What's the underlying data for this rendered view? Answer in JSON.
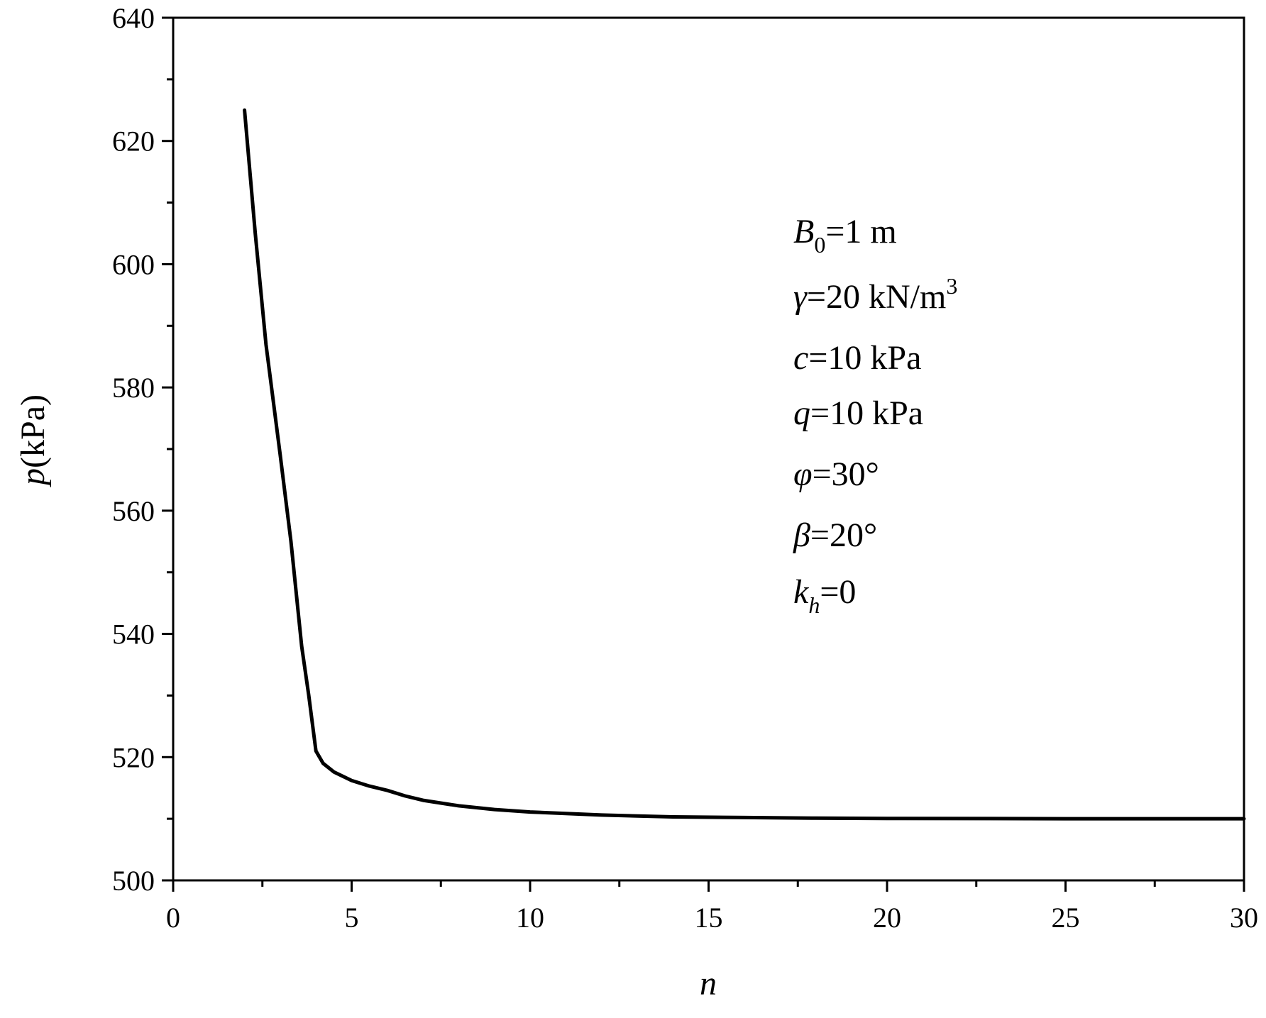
{
  "chart_data": {
    "type": "line",
    "title": "",
    "xlabel": "n",
    "ylabel": {
      "symbol": "p",
      "unit": "(kPa)"
    },
    "xlim": [
      0,
      30
    ],
    "ylim": [
      500,
      640
    ],
    "x_ticks": [
      0,
      5,
      10,
      15,
      20,
      25,
      30
    ],
    "y_ticks": [
      500,
      520,
      540,
      560,
      580,
      600,
      620,
      640
    ],
    "x_minor_step": 2.5,
    "y_minor_step": 10,
    "grid": false,
    "legend": "none",
    "series": [
      {
        "color": "#000000",
        "x": [
          2,
          2.3,
          2.6,
          3.0,
          3.3,
          3.6,
          3.8,
          4.0,
          4.2,
          4.5,
          5.0,
          5.5,
          6.0,
          6.5,
          7.0,
          8.0,
          9.0,
          10.0,
          12.0,
          14.0,
          16.0,
          18.0,
          20.0,
          25.0,
          30.0
        ],
        "y": [
          625,
          605,
          587,
          569,
          555,
          538,
          530,
          521,
          519,
          517.6,
          516.2,
          515.3,
          514.6,
          513.7,
          513,
          512.1,
          511.5,
          511.1,
          510.6,
          510.3,
          510.2,
          510.1,
          510.05,
          510,
          510
        ]
      }
    ],
    "annotations": [
      {
        "symbol": "B",
        "sub": "0",
        "rest": "=1 m"
      },
      {
        "symbol": "γ",
        "rest": "=20 kN/m",
        "sup": "3"
      },
      {
        "symbol": "c",
        "rest": "=10 kPa"
      },
      {
        "symbol": "q",
        "rest": "=10 kPa"
      },
      {
        "symbol": "φ",
        "rest": "=30°"
      },
      {
        "symbol": "β",
        "rest": "=20°"
      },
      {
        "symbol": "k",
        "sub": "h",
        "rest": "=0"
      }
    ]
  }
}
